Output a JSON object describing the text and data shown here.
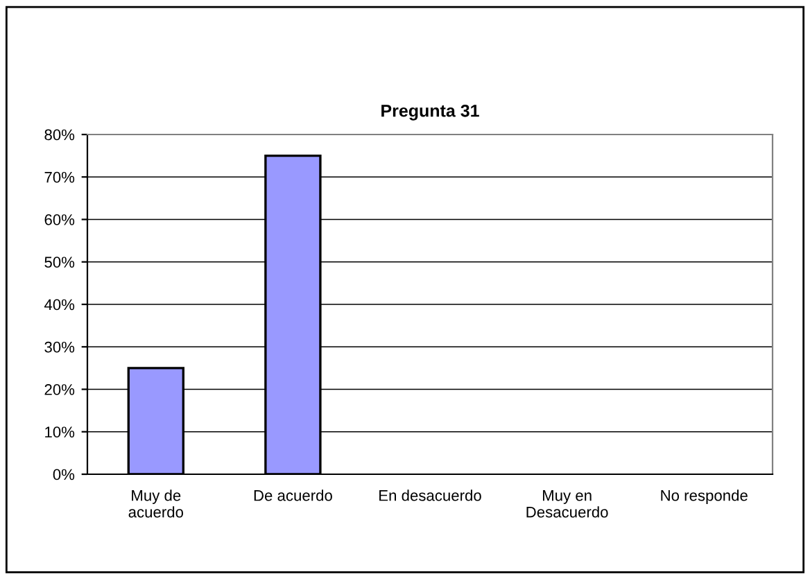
{
  "chart_data": {
    "type": "bar",
    "title": "Pregunta 31",
    "categories": [
      "Muy de\nacuerdo",
      "De acuerdo",
      "En desacuerdo",
      "Muy en\nDesacuerdo",
      "No responde"
    ],
    "values": [
      25,
      75,
      0,
      0,
      0
    ],
    "color": "#9999ff",
    "ylim": [
      0,
      80
    ],
    "yticks": [
      {
        "value": 0,
        "label": "0%"
      },
      {
        "value": 10,
        "label": "10%"
      },
      {
        "value": 20,
        "label": "20%"
      },
      {
        "value": 30,
        "label": "30%"
      },
      {
        "value": 40,
        "label": "40%"
      },
      {
        "value": 50,
        "label": "50%"
      },
      {
        "value": 60,
        "label": "60%"
      },
      {
        "value": 70,
        "label": "70%"
      },
      {
        "value": 80,
        "label": "80%"
      }
    ],
    "grid": "y",
    "legend": false
  }
}
